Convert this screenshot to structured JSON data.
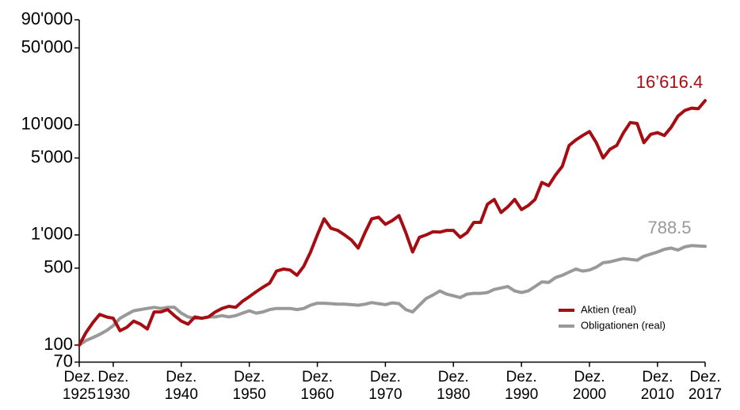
{
  "chart_data": {
    "type": "line",
    "log_y": true,
    "grid": false,
    "legend": "lower right",
    "ylim": [
      70,
      90000
    ],
    "yticks": [
      70,
      100,
      500,
      {
        "value": 1000,
        "label": "1'000"
      },
      {
        "value": 5000,
        "label": "5'000"
      },
      {
        "value": 10000,
        "label": "10'000"
      },
      {
        "value": 50000,
        "label": "50'000"
      },
      {
        "value": 90000,
        "label": "90'000"
      }
    ],
    "xlim": [
      1925,
      2017
    ],
    "xticks": [
      {
        "value": 1925,
        "label": "Dez. 1925"
      },
      {
        "value": 1930,
        "label": "Dez. 1930"
      },
      {
        "value": 1940,
        "label": "Dez. 1940"
      },
      {
        "value": 1950,
        "label": "Dez. 1950"
      },
      {
        "value": 1960,
        "label": "Dez. 1960"
      },
      {
        "value": 1970,
        "label": "Dez. 1970"
      },
      {
        "value": 1980,
        "label": "Dez. 1980"
      },
      {
        "value": 1990,
        "label": "Dez. 1990"
      },
      {
        "value": 2000,
        "label": "Dez. 2000"
      },
      {
        "value": 2010,
        "label": "Dez. 2010"
      },
      {
        "value": 2017,
        "label": "Dez. 2017"
      }
    ],
    "x": [
      1925,
      1926,
      1927,
      1928,
      1929,
      1930,
      1931,
      1932,
      1933,
      1934,
      1935,
      1936,
      1937,
      1938,
      1939,
      1940,
      1941,
      1942,
      1943,
      1944,
      1945,
      1946,
      1947,
      1948,
      1949,
      1950,
      1951,
      1952,
      1953,
      1954,
      1955,
      1956,
      1957,
      1958,
      1959,
      1960,
      1961,
      1962,
      1963,
      1964,
      1965,
      1966,
      1967,
      1968,
      1969,
      1970,
      1971,
      1972,
      1973,
      1974,
      1975,
      1976,
      1977,
      1978,
      1979,
      1980,
      1981,
      1982,
      1983,
      1984,
      1985,
      1986,
      1987,
      1988,
      1989,
      1990,
      1991,
      1992,
      1993,
      1994,
      1995,
      1996,
      1997,
      1998,
      1999,
      2000,
      2001,
      2002,
      2003,
      2004,
      2005,
      2006,
      2007,
      2008,
      2009,
      2010,
      2011,
      2012,
      2013,
      2014,
      2015,
      2016,
      2017
    ],
    "series": [
      {
        "name": "Aktien (real)",
        "color": "#a50d12",
        "values": [
          100,
          130,
          160,
          190,
          180,
          175,
          135,
          145,
          165,
          155,
          140,
          200,
          200,
          210,
          185,
          165,
          155,
          180,
          175,
          180,
          200,
          215,
          225,
          220,
          250,
          275,
          305,
          335,
          365,
          470,
          490,
          480,
          430,
          520,
          700,
          1000,
          1400,
          1150,
          1100,
          1000,
          900,
          760,
          1050,
          1400,
          1450,
          1250,
          1350,
          1500,
          1050,
          700,
          950,
          1000,
          1070,
          1060,
          1100,
          1100,
          950,
          1050,
          1300,
          1300,
          1900,
          2100,
          1600,
          1800,
          2100,
          1700,
          1850,
          2100,
          3000,
          2800,
          3500,
          4200,
          6500,
          7300,
          8000,
          8700,
          6900,
          5000,
          6000,
          6500,
          8500,
          10500,
          10300,
          6900,
          8200,
          8500,
          8000,
          9500,
          12000,
          13500,
          14200,
          14000,
          16616.4
        ]
      },
      {
        "name": "Obligationen (real)",
        "color": "#999999",
        "values": [
          100,
          110,
          117,
          125,
          135,
          150,
          175,
          190,
          205,
          210,
          215,
          220,
          215,
          220,
          220,
          195,
          180,
          175,
          175,
          180,
          180,
          185,
          180,
          185,
          195,
          205,
          195,
          200,
          210,
          215,
          215,
          215,
          210,
          215,
          230,
          240,
          240,
          238,
          235,
          235,
          233,
          230,
          235,
          243,
          238,
          233,
          242,
          238,
          210,
          200,
          230,
          265,
          285,
          310,
          290,
          280,
          270,
          290,
          295,
          295,
          300,
          320,
          330,
          340,
          310,
          300,
          310,
          340,
          375,
          370,
          410,
          430,
          460,
          490,
          470,
          480,
          510,
          560,
          570,
          590,
          610,
          600,
          590,
          640,
          670,
          700,
          740,
          760,
          730,
          780,
          800,
          795,
          788.5
        ]
      }
    ],
    "annotations": [
      {
        "text": "16’616.4",
        "series": 0
      },
      {
        "text": "788.5",
        "series": 1
      }
    ]
  }
}
